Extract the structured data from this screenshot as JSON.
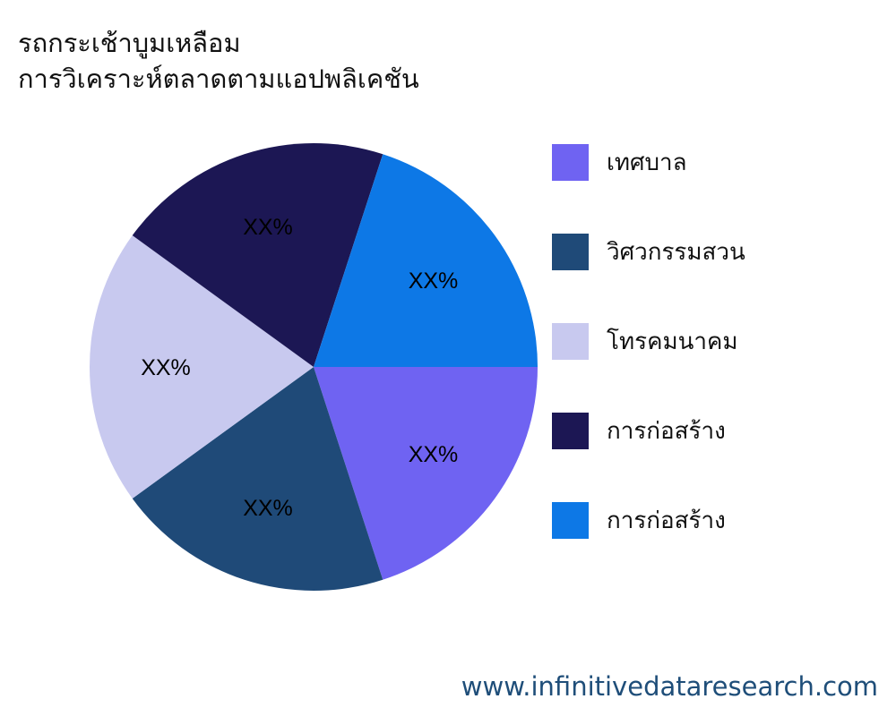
{
  "chart_data": {
    "type": "pie",
    "title": [
      "รถกระเช้าบูมเหลือม",
      "การวิเคราะห์ตลาดตามแอปพลิเคชัน"
    ],
    "categories": [
      "เทศบาล",
      "วิศวกรรมสวน",
      "โทรคมนาคม",
      "การก่อสร้าง",
      "การก่อสร้าง"
    ],
    "values": [
      20,
      20,
      20,
      20,
      20
    ],
    "data_labels": [
      "XX%",
      "XX%",
      "XX%",
      "XX%",
      "XX%"
    ],
    "colors": [
      "#6f63f2",
      "#1f4a78",
      "#c8c9ef",
      "#1c1754",
      "#0d78e6"
    ],
    "legend_position": "right"
  },
  "footer": "www.infinitivedataresearch.com"
}
